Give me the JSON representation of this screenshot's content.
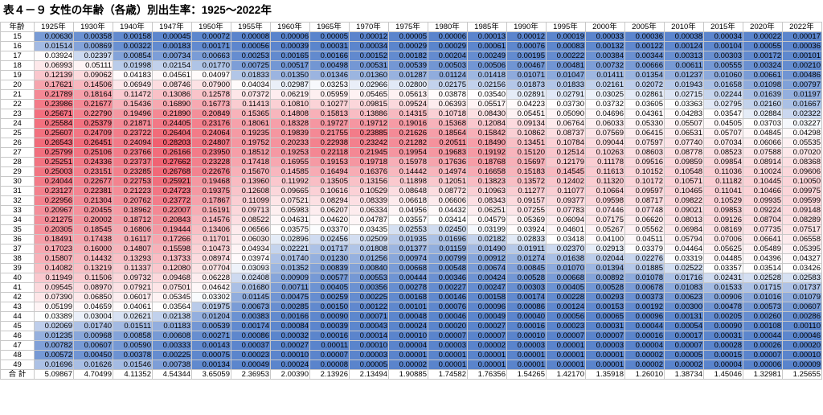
{
  "title": "表４－９ 女性の年齢（各歳）別出生率：1925～2022年",
  "table": {
    "corner_label": "年齢",
    "total_label": "合 計",
    "years": [
      "1925年",
      "1930年",
      "1940年",
      "1947年",
      "1950年",
      "1955年",
      "1960年",
      "1965年",
      "1970年",
      "1975年",
      "1980年",
      "1985年",
      "1990年",
      "1995年",
      "2000年",
      "2005年",
      "2010年",
      "2015年",
      "2020年",
      "2022年"
    ],
    "rows": [
      {
        "age": "15",
        "values": [
          "0.00630",
          "0.00358",
          "0.00158",
          "0.00045",
          "0.00072",
          "0.00008",
          "0.00006",
          "0.00005",
          "0.00012",
          "0.00005",
          "0.00006",
          "0.00013",
          "0.00012",
          "0.00019",
          "0.00033",
          "0.00036",
          "0.00038",
          "0.00034",
          "0.00022",
          "0.00017"
        ]
      },
      {
        "age": "16",
        "values": [
          "0.01514",
          "0.00869",
          "0.00322",
          "0.00183",
          "0.00171",
          "0.00056",
          "0.00039",
          "0.00031",
          "0.00034",
          "0.00029",
          "0.00029",
          "0.00061",
          "0.00076",
          "0.00083",
          "0.00132",
          "0.00122",
          "0.00124",
          "0.00104",
          "0.00055",
          "0.00036"
        ]
      },
      {
        "age": "17",
        "values": [
          "0.03924",
          "0.02397",
          "0.00854",
          "0.00734",
          "0.00663",
          "0.00253",
          "0.00165",
          "0.00166",
          "0.00152",
          "0.00182",
          "0.00204",
          "0.00249",
          "0.00195",
          "0.00222",
          "0.00384",
          "0.00344",
          "0.00313",
          "0.00303",
          "0.00172",
          "0.00101"
        ]
      },
      {
        "age": "18",
        "values": [
          "0.06993",
          "0.05111",
          "0.01998",
          "0.02154",
          "0.01770",
          "0.00725",
          "0.00517",
          "0.00498",
          "0.00531",
          "0.00539",
          "0.00503",
          "0.00506",
          "0.00467",
          "0.00481",
          "0.00732",
          "0.00666",
          "0.00611",
          "0.00555",
          "0.00324",
          "0.00210"
        ]
      },
      {
        "age": "19",
        "values": [
          "0.12139",
          "0.09062",
          "0.04183",
          "0.04561",
          "0.04097",
          "0.01833",
          "0.01350",
          "0.01346",
          "0.01360",
          "0.01287",
          "0.01124",
          "0.01418",
          "0.01071",
          "0.01047",
          "0.01411",
          "0.01354",
          "0.01237",
          "0.01060",
          "0.00661",
          "0.00486"
        ]
      },
      {
        "age": "20",
        "values": [
          "0.17621",
          "0.14506",
          "0.06949",
          "0.08746",
          "0.07900",
          "0.04034",
          "0.02987",
          "0.03253",
          "0.02966",
          "0.02800",
          "0.02175",
          "0.02156",
          "0.01873",
          "0.01833",
          "0.02161",
          "0.02072",
          "0.01943",
          "0.01658",
          "0.01098",
          "0.00797"
        ]
      },
      {
        "age": "21",
        "values": [
          "0.21789",
          "0.18164",
          "0.11472",
          "0.13086",
          "0.12578",
          "0.07372",
          "0.06219",
          "0.05959",
          "0.05465",
          "0.05613",
          "0.03878",
          "0.03540",
          "0.02891",
          "0.02791",
          "0.03025",
          "0.02861",
          "0.02715",
          "0.02244",
          "0.01639",
          "0.01197"
        ]
      },
      {
        "age": "22",
        "values": [
          "0.23986",
          "0.21677",
          "0.15436",
          "0.16890",
          "0.16773",
          "0.11413",
          "0.10810",
          "0.10277",
          "0.09815",
          "0.09524",
          "0.06393",
          "0.05517",
          "0.04223",
          "0.03730",
          "0.03732",
          "0.03605",
          "0.03363",
          "0.02795",
          "0.02160",
          "0.01667"
        ]
      },
      {
        "age": "23",
        "values": [
          "0.25671",
          "0.22790",
          "0.19496",
          "0.21890",
          "0.20849",
          "0.15365",
          "0.14808",
          "0.15813",
          "0.13886",
          "0.14315",
          "0.10718",
          "0.08430",
          "0.05451",
          "0.05090",
          "0.04696",
          "0.04361",
          "0.04283",
          "0.03547",
          "0.02884",
          "0.02322"
        ]
      },
      {
        "age": "24",
        "values": [
          "0.25584",
          "0.25379",
          "0.21871",
          "0.24405",
          "0.23176",
          "0.18061",
          "0.18328",
          "0.19727",
          "0.19712",
          "0.19016",
          "0.15368",
          "0.12084",
          "0.09134",
          "0.06764",
          "0.06033",
          "0.05330",
          "0.05507",
          "0.04505",
          "0.03703",
          "0.03227"
        ]
      },
      {
        "age": "25",
        "values": [
          "0.25607",
          "0.24709",
          "0.23722",
          "0.26404",
          "0.24064",
          "0.19235",
          "0.19839",
          "0.21755",
          "0.23885",
          "0.21626",
          "0.18564",
          "0.15842",
          "0.10862",
          "0.08737",
          "0.07569",
          "0.06415",
          "0.06531",
          "0.05707",
          "0.04845",
          "0.04298"
        ]
      },
      {
        "age": "26",
        "values": [
          "0.26543",
          "0.26451",
          "0.24094",
          "0.28203",
          "0.24807",
          "0.19752",
          "0.20233",
          "0.22938",
          "0.23242",
          "0.21282",
          "0.20511",
          "0.18490",
          "0.13451",
          "0.10784",
          "0.09044",
          "0.07597",
          "0.07740",
          "0.07034",
          "0.06066",
          "0.05535"
        ]
      },
      {
        "age": "27",
        "values": [
          "0.25799",
          "0.25106",
          "0.23766",
          "0.26166",
          "0.23950",
          "0.18512",
          "0.19253",
          "0.22118",
          "0.21945",
          "0.19954",
          "0.19683",
          "0.19192",
          "0.15120",
          "0.12514",
          "0.10263",
          "0.08603",
          "0.08778",
          "0.08523",
          "0.07588",
          "0.07020"
        ]
      },
      {
        "age": "28",
        "values": [
          "0.25251",
          "0.24336",
          "0.23737",
          "0.27662",
          "0.23228",
          "0.17418",
          "0.16955",
          "0.19153",
          "0.19718",
          "0.15978",
          "0.17636",
          "0.18768",
          "0.15697",
          "0.12179",
          "0.11178",
          "0.09516",
          "0.09859",
          "0.09854",
          "0.08914",
          "0.08368"
        ]
      },
      {
        "age": "29",
        "values": [
          "0.25003",
          "0.23151",
          "0.23285",
          "0.26768",
          "0.22676",
          "0.15670",
          "0.14585",
          "0.16494",
          "0.16376",
          "0.14442",
          "0.14974",
          "0.16658",
          "0.15183",
          "0.14545",
          "0.11613",
          "0.10152",
          "0.10548",
          "0.11036",
          "0.10024",
          "0.09606"
        ]
      },
      {
        "age": "30",
        "values": [
          "0.24044",
          "0.22677",
          "0.22753",
          "0.25921",
          "0.19468",
          "0.13960",
          "0.11992",
          "0.13505",
          "0.13156",
          "0.11898",
          "0.12051",
          "0.13823",
          "0.13572",
          "0.12402",
          "0.11320",
          "0.10172",
          "0.10571",
          "0.11182",
          "0.10445",
          "0.10050"
        ]
      },
      {
        "age": "31",
        "values": [
          "0.23127",
          "0.22381",
          "0.21223",
          "0.24723",
          "0.19375",
          "0.12608",
          "0.09665",
          "0.10616",
          "0.10529",
          "0.08648",
          "0.08772",
          "0.10963",
          "0.11277",
          "0.11077",
          "0.10664",
          "0.09597",
          "0.10465",
          "0.11041",
          "0.10466",
          "0.09975"
        ]
      },
      {
        "age": "32",
        "values": [
          "0.22956",
          "0.21304",
          "0.20762",
          "0.23772",
          "0.17867",
          "0.11099",
          "0.07521",
          "0.08294",
          "0.08339",
          "0.06618",
          "0.06606",
          "0.08343",
          "0.09157",
          "0.09377",
          "0.09598",
          "0.08717",
          "0.09822",
          "0.10529",
          "0.09935",
          "0.09599"
        ]
      },
      {
        "age": "33",
        "values": [
          "0.20967",
          "0.20455",
          "0.18962",
          "0.22007",
          "0.16191",
          "0.09713",
          "0.05983",
          "0.06207",
          "0.06334",
          "0.04956",
          "0.04432",
          "0.06251",
          "0.07255",
          "0.07783",
          "0.07446",
          "0.07748",
          "0.09021",
          "0.09853",
          "0.09224",
          "0.09148"
        ]
      },
      {
        "age": "34",
        "values": [
          "0.21275",
          "0.20002",
          "0.18712",
          "0.20843",
          "0.14576",
          "0.08522",
          "0.04631",
          "0.04620",
          "0.04787",
          "0.03557",
          "0.03414",
          "0.04579",
          "0.05369",
          "0.06094",
          "0.07175",
          "0.06620",
          "0.08013",
          "0.09126",
          "0.08704",
          "0.08289"
        ]
      },
      {
        "age": "35",
        "values": [
          "0.20305",
          "0.18545",
          "0.16806",
          "0.19444",
          "0.13406",
          "0.06566",
          "0.03575",
          "0.03370",
          "0.03435",
          "0.02553",
          "0.02450",
          "0.03199",
          "0.03924",
          "0.04601",
          "0.05267",
          "0.05562",
          "0.06984",
          "0.08169",
          "0.07735",
          "0.07517"
        ]
      },
      {
        "age": "36",
        "values": [
          "0.18491",
          "0.17438",
          "0.16117",
          "0.17266",
          "0.11701",
          "0.06030",
          "0.02896",
          "0.02456",
          "0.02509",
          "0.01935",
          "0.01696",
          "0.02182",
          "0.02833",
          "0.03418",
          "0.04100",
          "0.04511",
          "0.05794",
          "0.07006",
          "0.06641",
          "0.06558"
        ]
      },
      {
        "age": "37",
        "values": [
          "0.17023",
          "0.16000",
          "0.14807",
          "0.15598",
          "0.10473",
          "0.04934",
          "0.02221",
          "0.01717",
          "0.01808",
          "0.01377",
          "0.01159",
          "0.01490",
          "0.01911",
          "0.02370",
          "0.02913",
          "0.03379",
          "0.04464",
          "0.05625",
          "0.05489",
          "0.05395"
        ]
      },
      {
        "age": "38",
        "values": [
          "0.15807",
          "0.14432",
          "0.13293",
          "0.13733",
          "0.08974",
          "0.03974",
          "0.01740",
          "0.01230",
          "0.01256",
          "0.00974",
          "0.00799",
          "0.00912",
          "0.01274",
          "0.01638",
          "0.02044",
          "0.02276",
          "0.03319",
          "0.04485",
          "0.04396",
          "0.04327"
        ]
      },
      {
        "age": "39",
        "values": [
          "0.14082",
          "0.13219",
          "0.11337",
          "0.12080",
          "0.07704",
          "0.03093",
          "0.01352",
          "0.00839",
          "0.00840",
          "0.00668",
          "0.00548",
          "0.00674",
          "0.00845",
          "0.01070",
          "0.01394",
          "0.01885",
          "0.02522",
          "0.03357",
          "0.03514",
          "0.03426"
        ]
      },
      {
        "age": "40",
        "values": [
          "0.11949",
          "0.11506",
          "0.09732",
          "0.09468",
          "0.06228",
          "0.02408",
          "0.00909",
          "0.00577",
          "0.00553",
          "0.00444",
          "0.00346",
          "0.00424",
          "0.00528",
          "0.00668",
          "0.00892",
          "0.01078",
          "0.01716",
          "0.02431",
          "0.02528",
          "0.02583"
        ]
      },
      {
        "age": "41",
        "values": [
          "0.09545",
          "0.08970",
          "0.07921",
          "0.07501",
          "0.04642",
          "0.01680",
          "0.00711",
          "0.00405",
          "0.00356",
          "0.00278",
          "0.00227",
          "0.00247",
          "0.00303",
          "0.00405",
          "0.00528",
          "0.00678",
          "0.01083",
          "0.01533",
          "0.01715",
          "0.01737"
        ]
      },
      {
        "age": "42",
        "values": [
          "0.07390",
          "0.06850",
          "0.06017",
          "0.05345",
          "0.03302",
          "0.01145",
          "0.00475",
          "0.00259",
          "0.00225",
          "0.00168",
          "0.00146",
          "0.00158",
          "0.00174",
          "0.00228",
          "0.00293",
          "0.00373",
          "0.00623",
          "0.00906",
          "0.01016",
          "0.01079"
        ]
      },
      {
        "age": "43",
        "values": [
          "0.05199",
          "0.04659",
          "0.04061",
          "0.03564",
          "0.01975",
          "0.00673",
          "0.00285",
          "0.00150",
          "0.00122",
          "0.00101",
          "0.00076",
          "0.00096",
          "0.00086",
          "0.00124",
          "0.00153",
          "0.00192",
          "0.00300",
          "0.00478",
          "0.00573",
          "0.00607"
        ]
      },
      {
        "age": "44",
        "values": [
          "0.03389",
          "0.03004",
          "0.02621",
          "0.02138",
          "0.01204",
          "0.00383",
          "0.00166",
          "0.00090",
          "0.00071",
          "0.00048",
          "0.00046",
          "0.00049",
          "0.00040",
          "0.00056",
          "0.00065",
          "0.00096",
          "0.00131",
          "0.00205",
          "0.00260",
          "0.00286"
        ]
      },
      {
        "age": "45",
        "values": [
          "0.02069",
          "0.01740",
          "0.01511",
          "0.01183",
          "0.00539",
          "0.00174",
          "0.00084",
          "0.00039",
          "0.00043",
          "0.00024",
          "0.00020",
          "0.00027",
          "0.00016",
          "0.00023",
          "0.00031",
          "0.00044",
          "0.00054",
          "0.00090",
          "0.00108",
          "0.00110"
        ]
      },
      {
        "age": "46",
        "values": [
          "0.01235",
          "0.00968",
          "0.00858",
          "0.00608",
          "0.00271",
          "0.00086",
          "0.00032",
          "0.00016",
          "0.00014",
          "0.00010",
          "0.00007",
          "0.00007",
          "0.00010",
          "0.00007",
          "0.00007",
          "0.00016",
          "0.00017",
          "0.00031",
          "0.00044",
          "0.00046"
        ]
      },
      {
        "age": "47",
        "values": [
          "0.00782",
          "0.00607",
          "0.00590",
          "0.00333",
          "0.00143",
          "0.00037",
          "0.00027",
          "0.00011",
          "0.00010",
          "0.00004",
          "0.00003",
          "0.00002",
          "0.00003",
          "0.00001",
          "0.00003",
          "0.00004",
          "0.00007",
          "0.00028",
          "0.00026",
          "0.00020"
        ]
      },
      {
        "age": "48",
        "values": [
          "0.00572",
          "0.00450",
          "0.00378",
          "0.00225",
          "0.00075",
          "0.00023",
          "0.00010",
          "0.00007",
          "0.00003",
          "0.00001",
          "0.00001",
          "0.00001",
          "0.00001",
          "0.00001",
          "0.00001",
          "0.00002",
          "0.00005",
          "0.00015",
          "0.00007",
          "0.00010"
        ]
      },
      {
        "age": "49",
        "values": [
          "0.01696",
          "0.01626",
          "0.01546",
          "0.00738",
          "0.00134",
          "0.00049",
          "0.00024",
          "0.00008",
          "0.00005",
          "0.00002",
          "0.00001",
          "0.00001",
          "0.00001",
          "0.00001",
          "0.00001",
          "0.00002",
          "0.00002",
          "0.00004",
          "0.00006",
          "0.00009"
        ]
      }
    ],
    "totals": [
      "5.09867",
      "4.70499",
      "4.11352",
      "4.54344",
      "3.65059",
      "2.36953",
      "2.00390",
      "2.13926",
      "2.13494",
      "1.90885",
      "1.74582",
      "1.76356",
      "1.54265",
      "1.42170",
      "1.35918",
      "1.26010",
      "1.38734",
      "1.45046",
      "1.32981",
      "1.25655"
    ]
  },
  "colors": {
    "high": "#f06070",
    "mid": "#ffffff",
    "low": "#5a84cc",
    "grid": "#c8c8c8"
  }
}
